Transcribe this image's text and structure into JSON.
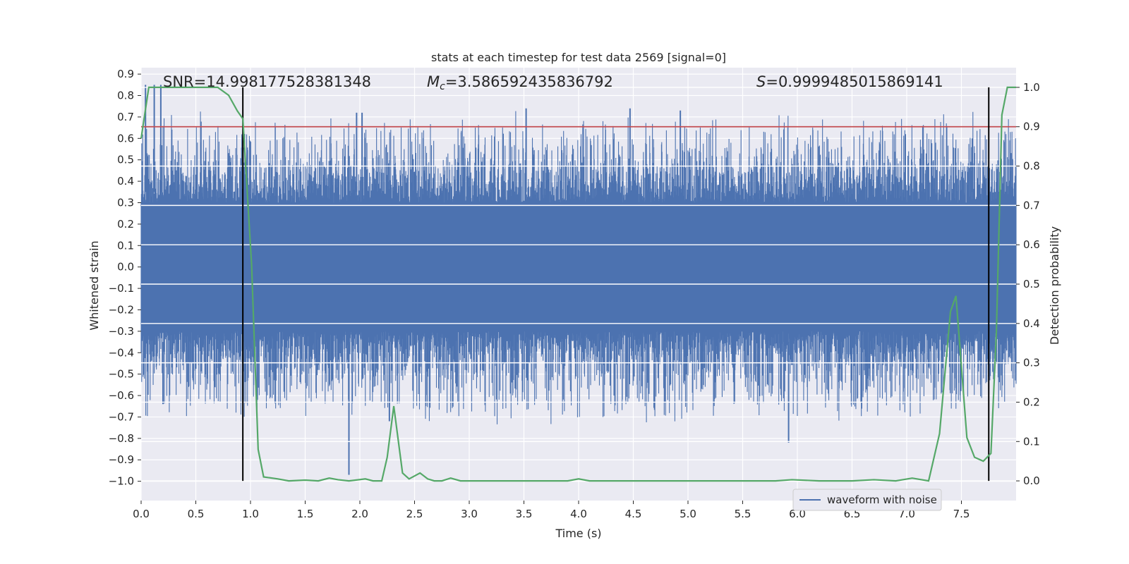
{
  "chart_data": {
    "type": "line",
    "title": "stats at each timestep for test data 2569 [signal=0]",
    "xlabel": "Time (s)",
    "ylabel_left": "Whitened strain",
    "ylabel_right": "Detection probability",
    "xlim": [
      0.0,
      8.0
    ],
    "ylim_left": [
      -1.09,
      0.93
    ],
    "ylim_right": [
      -0.05,
      1.05
    ],
    "x_ticks": [
      "0.0",
      "0.5",
      "1.0",
      "1.5",
      "2.0",
      "2.5",
      "3.0",
      "3.5",
      "4.0",
      "4.5",
      "5.0",
      "5.5",
      "6.0",
      "6.5",
      "7.0",
      "7.5"
    ],
    "y_left_ticks": [
      "0.9",
      "0.8",
      "0.7",
      "0.6",
      "0.5",
      "0.4",
      "0.3",
      "0.2",
      "0.1",
      "0.0",
      "−0.1",
      "−0.2",
      "−0.3",
      "−0.4",
      "−0.5",
      "−0.6",
      "−0.7",
      "−0.8",
      "−0.9",
      "−1.0"
    ],
    "y_right_ticks": [
      "1.0",
      "0.9",
      "0.8",
      "0.7",
      "0.6",
      "0.5",
      "0.4",
      "0.3",
      "0.2",
      "0.1",
      "0.0"
    ],
    "grid": true,
    "legend": {
      "placement": "lower-right",
      "entries": [
        "waveform with noise"
      ]
    },
    "annotations": {
      "snr": "SNR=14.998177528381348",
      "mc_symbol": "M",
      "mc_sub": "c",
      "mc_value": "=3.586592435836792",
      "s_symbol": "S",
      "s_value": "=0.9999485015869141"
    },
    "series": [
      {
        "name": "waveform with noise",
        "kind": "noisy-waveform",
        "color": "#4c72b0",
        "core_range": [
          -0.3,
          0.3
        ],
        "spike_peaks": [
          {
            "x": 0.04,
            "y": 0.85
          },
          {
            "x": 0.12,
            "y": 0.85
          },
          {
            "x": 0.18,
            "y": 0.85
          },
          {
            "x": 0.2,
            "y": -0.64
          },
          {
            "x": 0.93,
            "y": -0.62
          },
          {
            "x": 1.9,
            "y": -0.97
          },
          {
            "x": 1.97,
            "y": 0.72
          },
          {
            "x": 2.02,
            "y": 0.72
          },
          {
            "x": 2.27,
            "y": -0.72
          },
          {
            "x": 3.52,
            "y": 0.74
          },
          {
            "x": 4.47,
            "y": 0.74
          },
          {
            "x": 4.93,
            "y": 0.73
          },
          {
            "x": 5.92,
            "y": -0.82
          },
          {
            "x": 7.6,
            "y": 0.6
          }
        ]
      },
      {
        "name": "",
        "kind": "detection-probability",
        "color": "#55a868",
        "axis": "right",
        "x": [
          0.0,
          0.07,
          0.14,
          0.3,
          0.5,
          0.7,
          0.8,
          0.88,
          0.93,
          1.01,
          1.07,
          1.12,
          1.25,
          1.35,
          1.5,
          1.62,
          1.72,
          1.8,
          1.9,
          2.05,
          2.12,
          2.2,
          2.25,
          2.31,
          2.39,
          2.45,
          2.55,
          2.62,
          2.68,
          2.75,
          2.83,
          2.92,
          3.0,
          3.5,
          3.9,
          4.0,
          4.1,
          5.0,
          5.8,
          5.95,
          6.2,
          6.5,
          6.7,
          6.9,
          7.05,
          7.2,
          7.3,
          7.4,
          7.45,
          7.55,
          7.62,
          7.7,
          7.77,
          7.82,
          7.87,
          7.92,
          8.0
        ],
        "y": [
          0.87,
          1.0,
          1.0,
          1.0,
          1.0,
          1.0,
          0.98,
          0.94,
          0.92,
          0.55,
          0.08,
          0.01,
          0.005,
          0.0,
          0.002,
          0.0,
          0.007,
          0.003,
          0.0,
          0.005,
          0.0,
          0.0,
          0.06,
          0.19,
          0.02,
          0.005,
          0.02,
          0.005,
          0.0,
          0.0,
          0.007,
          0.0,
          0.0,
          0.0,
          0.0,
          0.005,
          0.0,
          0.0,
          0.0,
          0.003,
          0.0,
          0.0,
          0.003,
          0.0,
          0.007,
          0.0,
          0.12,
          0.43,
          0.47,
          0.11,
          0.06,
          0.05,
          0.07,
          0.38,
          0.93,
          1.0,
          1.0
        ]
      },
      {
        "name": "",
        "kind": "threshold",
        "color": "#c44e52",
        "axis": "right",
        "y": 0.9
      }
    ],
    "vertical_lines": [
      {
        "x": 0.93,
        "color": "#000000"
      },
      {
        "x": 7.75,
        "color": "#000000"
      }
    ],
    "background": "#eaeaf2"
  }
}
